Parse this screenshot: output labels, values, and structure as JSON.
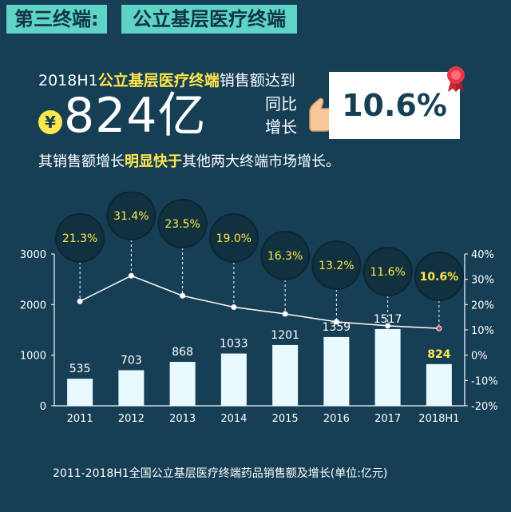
{
  "header": {
    "tag_left": "第三终端:",
    "tag_right": "公立基层医疗终端"
  },
  "headline": {
    "prefix": "2018H1",
    "highlight": "公立基层医疗终端",
    "suffix": "销售额达到"
  },
  "sales": {
    "currency_symbol": "¥",
    "value_text": "824亿",
    "growth_label": "同比增长",
    "growth_value": "10.6%"
  },
  "subline": {
    "prefix": "其销售额增长",
    "highlight": "明显快于",
    "suffix": "其他两大终端市场增长。"
  },
  "colors": {
    "background": "#163f56",
    "accent_teal": "#5fd4c5",
    "highlight_yellow": "#ffe74c",
    "bar_fill": "#e8f9ff",
    "bubble_fill": "#11313f"
  },
  "chart_data": {
    "type": "bar",
    "categories": [
      "2011",
      "2012",
      "2013",
      "2014",
      "2015",
      "2016",
      "2017",
      "2018H1"
    ],
    "series": [
      {
        "type": "bar",
        "axis": "left",
        "values": [
          535,
          703,
          868,
          1033,
          1201,
          1359,
          1517,
          824
        ]
      },
      {
        "type": "line",
        "axis": "right",
        "values": [
          21.3,
          31.4,
          23.5,
          19.0,
          16.3,
          13.2,
          11.6,
          10.6
        ]
      }
    ],
    "bar_labels": [
      "535",
      "703",
      "868",
      "1033",
      "1201",
      "1359",
      "1517",
      "824"
    ],
    "growth_labels": [
      "21.3%",
      "31.4%",
      "23.5%",
      "19.0%",
      "16.3%",
      "13.2%",
      "11.6%",
      "10.6%"
    ],
    "y_left": {
      "range": [
        0,
        3000
      ],
      "ticks": [
        "0",
        "1000",
        "2000",
        "3000"
      ]
    },
    "y_right": {
      "range": [
        -20,
        40
      ],
      "ticks": [
        "-20%",
        "-10%",
        "0%",
        "10%",
        "20%",
        "30%",
        "40%"
      ]
    },
    "highlight_index": 7,
    "grid": false
  },
  "caption": "2011-2018H1全国公立基层医疗终端药品销售额及增长(单位:亿元)"
}
